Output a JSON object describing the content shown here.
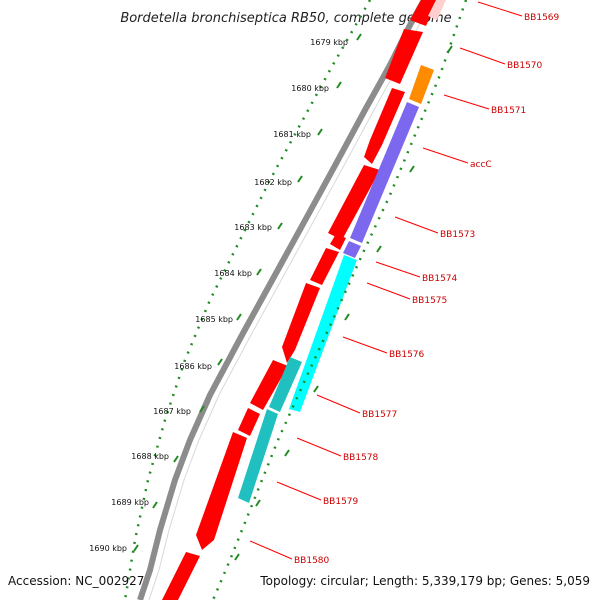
{
  "title": "Bordetella bronchiseptica RB50, complete genome",
  "accession": "Accession: NC_002927",
  "summary": "Topology: circular; Length: 5,339,179 bp; Genes: 5,059",
  "ticks": [
    "1679 kbp",
    "1680 kbp",
    "1681 kbp",
    "1682 kbp",
    "1683 kbp",
    "1684 kbp",
    "1685 kbp",
    "1686 kbp",
    "1687 kbp",
    "1688 kbp",
    "1689 kbp",
    "1690 kbp"
  ],
  "genes": [
    "BB1569",
    "BB1570",
    "BB1571",
    "accC",
    "BB1573",
    "BB1574",
    "BB1575",
    "BB1576",
    "BB1577",
    "BB1578",
    "BB1579",
    "BB1580"
  ],
  "colors": {
    "backbone": "#8c8c8c",
    "forward_cds": "#ff0000",
    "reverse_cds_orange": "#ff8c00",
    "reverse_cds_purple": "#7b68ee",
    "reverse_cds_cyan": "#00ffff",
    "reverse_cds_teal": "#20c0c0",
    "tick_major": "#228b22",
    "label": "#cc0000"
  }
}
